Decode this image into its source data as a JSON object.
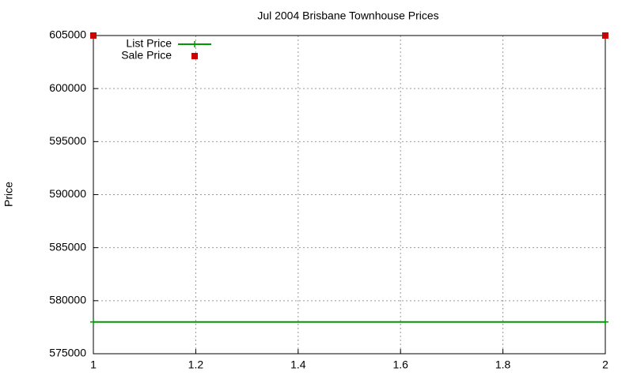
{
  "chart_data": {
    "type": "line",
    "title": "Jul 2004 Brisbane Townhouse Prices",
    "ylabel": "Price",
    "xlim": [
      1,
      2
    ],
    "xticks": [
      1,
      1.2,
      1.4,
      1.6,
      1.8,
      2
    ],
    "ylim": [
      575000,
      605000
    ],
    "yticks": [
      575000,
      580000,
      585000,
      590000,
      595000,
      600000,
      605000
    ],
    "grid": true,
    "legend": "top-left",
    "series": [
      {
        "name": "List Price",
        "color": "#009900",
        "style": "lines+markers",
        "x": [
          1,
          2
        ],
        "values": [
          578000,
          578000
        ]
      },
      {
        "name": "Sale Price",
        "color": "#cc0000",
        "style": "markers",
        "x": [
          1,
          2
        ],
        "values": [
          605000,
          605000
        ]
      }
    ]
  }
}
